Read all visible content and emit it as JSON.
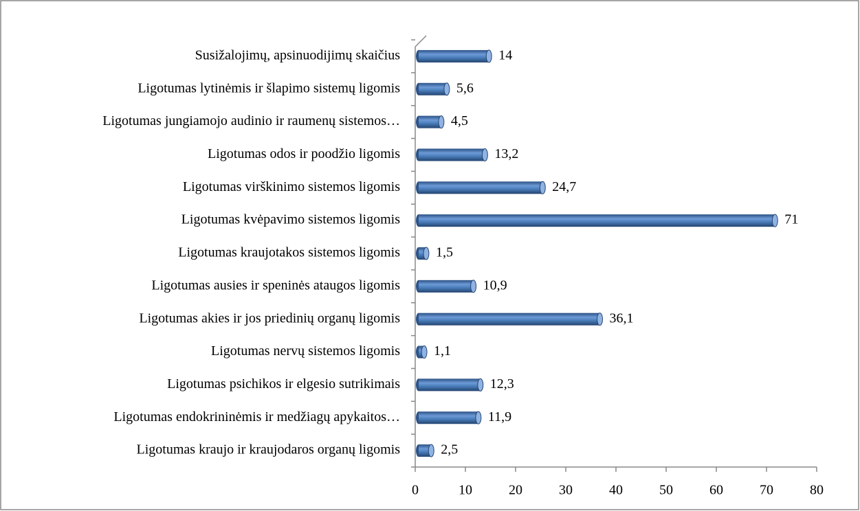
{
  "chart_data": {
    "type": "bar",
    "orientation": "horizontal",
    "categories": [
      "Susižalojimų, apsinuodijimų skaičius",
      "Ligotumas lytinėmis ir šlapimo sistemų ligomis",
      "Ligotumas jungiamojo audinio ir raumenų sistemos…",
      "Ligotumas odos ir poodžio ligomis",
      "Ligotumas virškinimo sistemos ligomis",
      "Ligotumas kvėpavimo sistemos ligomis",
      "Ligotumas kraujotakos sistemos ligomis",
      "Ligotumas ausies ir speninės ataugos ligomis",
      "Ligotumas akies ir jos priedinių organų ligomis",
      "Ligotumas nervų sistemos ligomis",
      "Ligotumas psichikos ir elgesio sutrikimais",
      "Ligotumas endokrininėmis ir medžiagų apykaitos…",
      "Ligotumas kraujo ir kraujodaros organų ligomis"
    ],
    "values": [
      14,
      5.6,
      4.5,
      13.2,
      24.7,
      71,
      1.5,
      10.9,
      36.1,
      1.1,
      12.3,
      11.9,
      2.5
    ],
    "value_labels": [
      "14",
      "5,6",
      "4,5",
      "13,2",
      "24,7",
      "71",
      "1,5",
      "10,9",
      "36,1",
      "1,1",
      "12,3",
      "11,9",
      "2,5"
    ],
    "color": "#4a7ebb",
    "xlim": [
      0,
      80
    ],
    "xticks": [
      0,
      10,
      20,
      30,
      40,
      50,
      60,
      70,
      80
    ]
  }
}
